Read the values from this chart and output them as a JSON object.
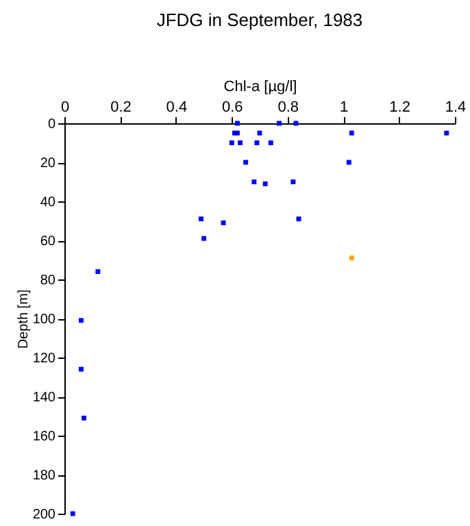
{
  "chart_data": {
    "type": "scatter",
    "title": "JFDG in September, 1983",
    "xlabel": "Chl-a [µg/l]",
    "ylabel": "Depth [m]",
    "xlim": [
      0,
      1.4
    ],
    "xticks": [
      0,
      0.2,
      0.4,
      0.6,
      0.8,
      1,
      1.2,
      1.4
    ],
    "ylim": [
      200,
      0
    ],
    "yticks": [
      0,
      20,
      40,
      60,
      80,
      100,
      120,
      140,
      160,
      180,
      200
    ],
    "grid": false,
    "marker": "square",
    "series": [
      {
        "color": "#0000ff",
        "x": [
          0.62,
          0.77,
          0.83,
          0.61,
          0.62,
          0.7,
          1.03,
          1.37,
          0.6,
          0.63,
          0.69,
          0.74,
          0.65,
          1.02,
          0.68,
          0.72,
          0.82,
          0.49,
          0.57,
          0.84,
          0.5,
          0.12,
          0.06,
          0.06,
          0.07,
          0.03
        ],
        "values": [
          0,
          0,
          0,
          5,
          5,
          5,
          5,
          5,
          10,
          10,
          10,
          10,
          20,
          20,
          30,
          31,
          30,
          49,
          51,
          49,
          59,
          76,
          101,
          126,
          151,
          200
        ]
      },
      {
        "color": "#ffa500",
        "x": [
          1.03
        ],
        "values": [
          69
        ]
      }
    ]
  }
}
